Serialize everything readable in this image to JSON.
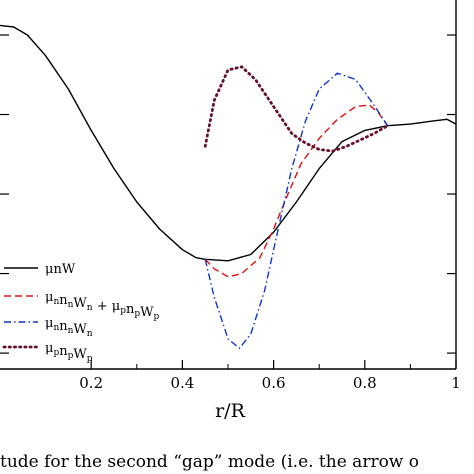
{
  "chart_data": {
    "type": "line",
    "xlabel": "r/R",
    "ylabel": "",
    "xlim": [
      0,
      1
    ],
    "xticks": [
      {
        "value": 0.2,
        "label": "0.2"
      },
      {
        "value": 0.4,
        "label": "0.4"
      },
      {
        "value": 0.6,
        "label": "0.6"
      },
      {
        "value": 0.8,
        "label": "0.8"
      },
      {
        "value": 1.0,
        "label": "1"
      }
    ],
    "ylim": [
      -1.1,
      1.22
    ],
    "yticks": [
      1.0,
      0.5,
      0.0,
      -0.5,
      -1.0
    ],
    "grid": false,
    "legend_position": "bottom-left",
    "series": [
      {
        "name": "μnW",
        "style": "solid",
        "color": "#000000",
        "points": [
          [
            0.0,
            1.06
          ],
          [
            0.03,
            1.05
          ],
          [
            0.06,
            1.0
          ],
          [
            0.1,
            0.87
          ],
          [
            0.15,
            0.66
          ],
          [
            0.2,
            0.4
          ],
          [
            0.25,
            0.16
          ],
          [
            0.3,
            -0.05
          ],
          [
            0.35,
            -0.22
          ],
          [
            0.4,
            -0.35
          ],
          [
            0.43,
            -0.4
          ],
          [
            0.45,
            -0.41
          ],
          [
            0.5,
            -0.42
          ],
          [
            0.55,
            -0.38
          ],
          [
            0.6,
            -0.24
          ],
          [
            0.65,
            -0.05
          ],
          [
            0.7,
            0.16
          ],
          [
            0.75,
            0.33
          ],
          [
            0.8,
            0.4
          ],
          [
            0.85,
            0.43
          ],
          [
            0.9,
            0.44
          ],
          [
            0.95,
            0.46
          ],
          [
            0.98,
            0.47
          ],
          [
            1.0,
            0.44
          ]
        ]
      },
      {
        "name": "μnnWn + μppnpWp",
        "style": "dashed",
        "color": "#dd1111",
        "points": [
          [
            0.45,
            -0.41
          ],
          [
            0.47,
            -0.47
          ],
          [
            0.5,
            -0.52
          ],
          [
            0.53,
            -0.5
          ],
          [
            0.57,
            -0.4
          ],
          [
            0.6,
            -0.22
          ],
          [
            0.63,
            -0.01
          ],
          [
            0.66,
            0.19
          ],
          [
            0.7,
            0.35
          ],
          [
            0.74,
            0.47
          ],
          [
            0.78,
            0.55
          ],
          [
            0.81,
            0.56
          ],
          [
            0.83,
            0.51
          ],
          [
            0.85,
            0.43
          ]
        ]
      },
      {
        "name": "μnnnWn",
        "style": "dashdot",
        "color": "#1133cc",
        "points": [
          [
            0.45,
            -0.41
          ],
          [
            0.47,
            -0.65
          ],
          [
            0.5,
            -0.91
          ],
          [
            0.525,
            -0.97
          ],
          [
            0.55,
            -0.88
          ],
          [
            0.58,
            -0.61
          ],
          [
            0.61,
            -0.22
          ],
          [
            0.64,
            0.16
          ],
          [
            0.67,
            0.46
          ],
          [
            0.7,
            0.66
          ],
          [
            0.74,
            0.76
          ],
          [
            0.78,
            0.72
          ],
          [
            0.82,
            0.56
          ],
          [
            0.85,
            0.43
          ]
        ]
      },
      {
        "name": "μppnpWp",
        "style": "dotted",
        "color": "#66102a",
        "points": [
          [
            0.45,
            0.3
          ],
          [
            0.47,
            0.59
          ],
          [
            0.5,
            0.78
          ],
          [
            0.53,
            0.8
          ],
          [
            0.56,
            0.72
          ],
          [
            0.6,
            0.55
          ],
          [
            0.64,
            0.38
          ],
          [
            0.67,
            0.32
          ],
          [
            0.7,
            0.28
          ],
          [
            0.73,
            0.27
          ],
          [
            0.76,
            0.3
          ],
          [
            0.79,
            0.34
          ],
          [
            0.82,
            0.38
          ],
          [
            0.85,
            0.43
          ]
        ]
      }
    ],
    "legend_entries": [
      {
        "series": 0,
        "parts": [
          {
            "t": "μnW",
            "sub": false
          }
        ]
      },
      {
        "series": 1,
        "parts": [
          {
            "t": "μ",
            "sub": false
          },
          {
            "t": "n",
            "sub": true
          },
          {
            "t": "n",
            "sub": false
          },
          {
            "t": "n",
            "sub": true
          },
          {
            "t": "W",
            "sub": false
          },
          {
            "t": "n",
            "sub": true
          },
          {
            "t": " + μ",
            "sub": false
          },
          {
            "t": "p",
            "sub": true
          },
          {
            "t": "n",
            "sub": false
          },
          {
            "t": "p",
            "sub": true
          },
          {
            "t": "W",
            "sub": false
          },
          {
            "t": "p",
            "sub": true
          }
        ]
      },
      {
        "series": 2,
        "parts": [
          {
            "t": "μ",
            "sub": false
          },
          {
            "t": "n",
            "sub": true
          },
          {
            "t": "n",
            "sub": false
          },
          {
            "t": "n",
            "sub": true
          },
          {
            "t": "W",
            "sub": false
          },
          {
            "t": "n",
            "sub": true
          }
        ]
      },
      {
        "series": 3,
        "parts": [
          {
            "t": "μ",
            "sub": false
          },
          {
            "t": "p",
            "sub": true
          },
          {
            "t": "n",
            "sub": false
          },
          {
            "t": "p",
            "sub": true
          },
          {
            "t": "W",
            "sub": false
          },
          {
            "t": "p",
            "sub": true
          }
        ]
      }
    ]
  },
  "caption": "tude for the second “gap” mode (i.e. the arrow o"
}
